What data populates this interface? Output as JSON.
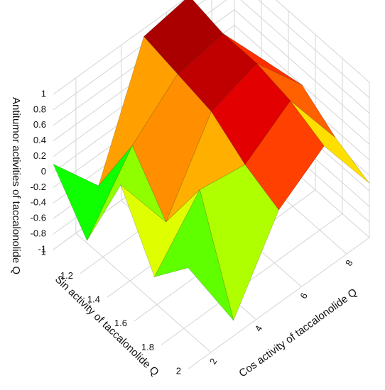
{
  "chart_data": {
    "type": "surface3d",
    "x_label": "Cos activity of taccalonolide Q",
    "y_label": "Sin activity of taccalonolide Q",
    "z_label": "Antitumor activities of taccalonolide Q",
    "x": [
      1,
      3,
      5,
      7,
      9
    ],
    "y": [
      1,
      1.25,
      1.5,
      1.75,
      2
    ],
    "z": [
      [
        0.1,
        -0.6,
        0.9,
        1.0,
        -0.2
      ],
      [
        -0.5,
        0.3,
        0.8,
        0.9,
        0.1
      ],
      [
        0.6,
        -0.3,
        0.7,
        0.9,
        0.2
      ],
      [
        -0.2,
        0.5,
        0.4,
        0.8,
        -0.1
      ],
      [
        0.3,
        -0.8,
        0.2,
        0.6,
        -0.3
      ]
    ],
    "xlim": [
      1,
      9
    ],
    "xticks": [
      2,
      4,
      6,
      8
    ],
    "ylim": [
      1,
      2
    ],
    "yticks": [
      1,
      1.2,
      1.4,
      1.6,
      1.8,
      2
    ],
    "zlim": [
      -1,
      1
    ],
    "zticks": [
      -1,
      -0.8,
      -0.6,
      -0.4,
      -0.2,
      0,
      0.2,
      0.4,
      0.6,
      0.8,
      1
    ],
    "grid": true,
    "colormap": "jet"
  }
}
